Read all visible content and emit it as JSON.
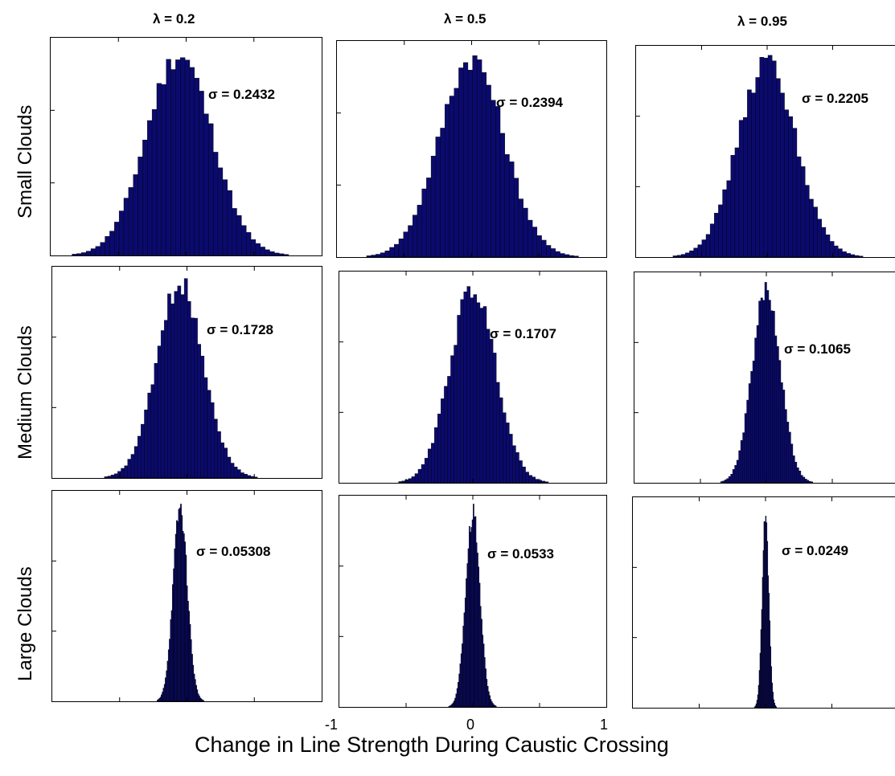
{
  "chart_data": {
    "type": "bar",
    "title": "",
    "xlabel": "Change in Line Strength During Caustic Crossing",
    "xlim": [
      -1,
      1
    ],
    "x_ticks": [
      -1,
      0,
      1
    ],
    "x_tick_labels": [
      "-1",
      "0",
      "1"
    ],
    "columns": [
      "λ = 0.2",
      "λ = 0.5",
      "λ = 0.95"
    ],
    "rows": [
      "Small Clouds",
      "Medium Clouds",
      "Large Clouds"
    ],
    "panels": [
      {
        "row": 0,
        "col": 0,
        "sigma_label": "σ = 0.2432",
        "sigma": 0.2432,
        "mean": -0.05
      },
      {
        "row": 0,
        "col": 1,
        "sigma_label": "σ = 0.2394",
        "sigma": 0.2394,
        "mean": 0.0
      },
      {
        "row": 0,
        "col": 2,
        "sigma_label": "σ = 0.2205",
        "sigma": 0.2205,
        "mean": 0.0
      },
      {
        "row": 1,
        "col": 0,
        "sigma_label": "σ = 0.1728",
        "sigma": 0.1728,
        "mean": -0.05
      },
      {
        "row": 1,
        "col": 1,
        "sigma_label": "σ = 0.1707",
        "sigma": 0.1707,
        "mean": 0.0
      },
      {
        "row": 1,
        "col": 2,
        "sigma_label": "σ = 0.1065",
        "sigma": 0.1065,
        "mean": 0.0
      },
      {
        "row": 2,
        "col": 0,
        "sigma_label": "σ = 0.05308",
        "sigma": 0.05308,
        "mean": -0.05
      },
      {
        "row": 2,
        "col": 1,
        "sigma_label": "σ = 0.0533",
        "sigma": 0.0533,
        "mean": 0.0
      },
      {
        "row": 2,
        "col": 2,
        "sigma_label": "σ = 0.0249",
        "sigma": 0.0249,
        "mean": 0.0
      }
    ],
    "colors": {
      "bar": "#0a0a6e",
      "bar_edge": "#000000"
    }
  }
}
